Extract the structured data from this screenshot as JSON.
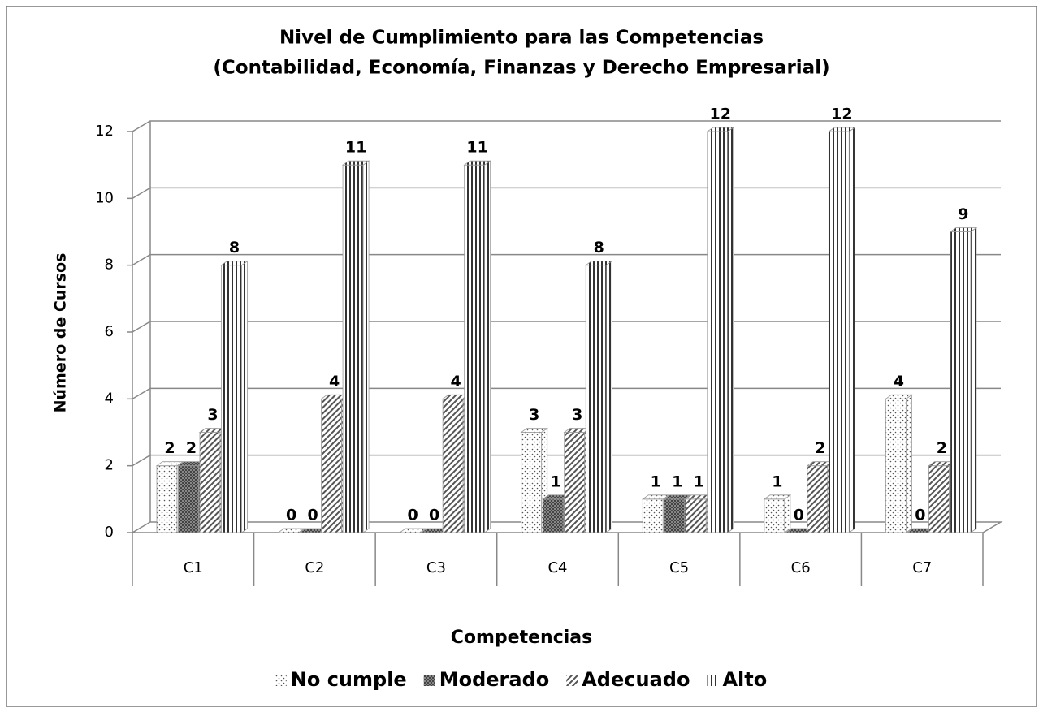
{
  "chart_data": {
    "type": "bar3d",
    "title": [
      "Nivel de Cumplimiento para las Competencias",
      "(Contabilidad, Economía, Finanzas y Derecho Empresarial)"
    ],
    "x_label": "Competencias",
    "y_label": "Número de Cursos",
    "categories": [
      "C1",
      "C2",
      "C3",
      "C4",
      "C5",
      "C6",
      "C7"
    ],
    "series": [
      {
        "name": "No cumple",
        "color": "#ffffff",
        "pattern": "dots",
        "values": [
          2,
          0,
          0,
          3,
          1,
          1,
          4
        ]
      },
      {
        "name": "Moderado",
        "color": "#555555",
        "pattern": "crosshatch",
        "values": [
          2,
          0,
          0,
          1,
          1,
          0,
          0
        ]
      },
      {
        "name": "Adecuado",
        "color": "#ffffff",
        "pattern": "diagonal",
        "values": [
          3,
          4,
          4,
          3,
          1,
          2,
          2
        ]
      },
      {
        "name": "Alto",
        "color": "#ffffff",
        "pattern": "vertical",
        "values": [
          8,
          11,
          11,
          8,
          12,
          12,
          9
        ]
      }
    ],
    "ylim": [
      0,
      12
    ],
    "yticks": [
      0,
      2,
      4,
      6,
      8,
      10,
      12
    ],
    "grid": true,
    "legend": "bottom"
  }
}
